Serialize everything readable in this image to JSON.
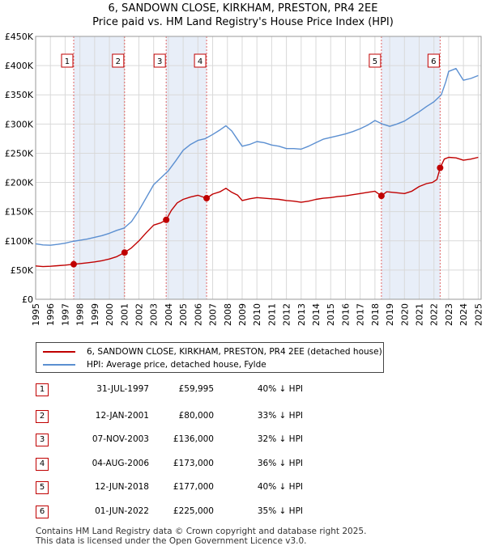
{
  "chart_data": {
    "type": "line",
    "title": "6, SANDOWN CLOSE, KIRKHAM, PRESTON, PR4 2EE",
    "subtitle": "Price paid vs. HM Land Registry's House Price Index (HPI)",
    "xlim": [
      1995,
      2025.2
    ],
    "ylim": [
      0,
      450000
    ],
    "x_ticks": [
      "1995",
      "1996",
      "1997",
      "1998",
      "1999",
      "2000",
      "2001",
      "2002",
      "2003",
      "2004",
      "2005",
      "2006",
      "2007",
      "2008",
      "2009",
      "2010",
      "2011",
      "2012",
      "2013",
      "2014",
      "2015",
      "2016",
      "2017",
      "2018",
      "2019",
      "2020",
      "2021",
      "2022",
      "2023",
      "2024",
      "2025"
    ],
    "y_ticks": [
      {
        "value": 0,
        "label": "£0"
      },
      {
        "value": 50000,
        "label": "£50K"
      },
      {
        "value": 100000,
        "label": "£100K"
      },
      {
        "value": 150000,
        "label": "£150K"
      },
      {
        "value": 200000,
        "label": "£200K"
      },
      {
        "value": 250000,
        "label": "£250K"
      },
      {
        "value": 300000,
        "label": "£300K"
      },
      {
        "value": 350000,
        "label": "£350K"
      },
      {
        "value": 400000,
        "label": "£400K"
      },
      {
        "value": 450000,
        "label": "£450K"
      }
    ],
    "grid": true,
    "series": [
      {
        "name": "6, SANDOWN CLOSE, KIRKHAM, PRESTON, PR4 2EE (detached house)",
        "color": "#c00000",
        "x": [
          1995.0,
          1995.5,
          1996.0,
          1996.5,
          1997.0,
          1997.58,
          1998.0,
          1998.5,
          1999.0,
          1999.5,
          2000.0,
          2000.5,
          2001.03,
          2001.5,
          2002.0,
          2002.5,
          2003.0,
          2003.5,
          2003.85,
          2004.2,
          2004.6,
          2005.0,
          2005.5,
          2006.0,
          2006.59,
          2007.0,
          2007.5,
          2007.9,
          2008.3,
          2008.7,
          2009.0,
          2009.5,
          2010.0,
          2010.5,
          2011.0,
          2011.5,
          2012.0,
          2012.5,
          2013.0,
          2013.5,
          2014.0,
          2014.5,
          2015.0,
          2015.5,
          2016.0,
          2016.5,
          2017.0,
          2017.5,
          2018.0,
          2018.44,
          2018.8,
          2019.2,
          2019.6,
          2020.0,
          2020.5,
          2021.0,
          2021.5,
          2021.9,
          2022.2,
          2022.42,
          2022.7,
          2023.0,
          2023.5,
          2024.0,
          2024.5,
          2025.0
        ],
        "y": [
          57000,
          56000,
          56500,
          57500,
          58500,
          59995,
          61000,
          62500,
          64000,
          66000,
          69000,
          73000,
          80000,
          88000,
          100000,
          114000,
          127000,
          131000,
          136000,
          152000,
          165000,
          171000,
          175000,
          178000,
          173000,
          180000,
          184000,
          190000,
          183000,
          178000,
          169000,
          172000,
          174000,
          173000,
          172000,
          171000,
          169000,
          168000,
          166000,
          168000,
          171000,
          173000,
          174000,
          176000,
          177000,
          179000,
          181000,
          183000,
          185000,
          177000,
          184000,
          183000,
          182000,
          181000,
          185000,
          193000,
          198000,
          200000,
          205000,
          225000,
          240000,
          243000,
          242000,
          238000,
          240000,
          243000
        ]
      },
      {
        "name": "HPI: Average price, detached house, Fylde",
        "color": "#5b8fd1",
        "x": [
          1995.0,
          1995.5,
          1996.0,
          1996.5,
          1997.0,
          1997.5,
          1998.0,
          1998.5,
          1999.0,
          1999.5,
          2000.0,
          2000.5,
          2001.0,
          2001.5,
          2002.0,
          2002.5,
          2003.0,
          2003.5,
          2004.0,
          2004.5,
          2005.0,
          2005.5,
          2006.0,
          2006.5,
          2007.0,
          2007.5,
          2007.9,
          2008.3,
          2008.7,
          2009.0,
          2009.5,
          2010.0,
          2010.5,
          2011.0,
          2011.5,
          2012.0,
          2012.5,
          2013.0,
          2013.5,
          2014.0,
          2014.5,
          2015.0,
          2015.5,
          2016.0,
          2016.5,
          2017.0,
          2017.5,
          2018.0,
          2018.5,
          2019.0,
          2019.5,
          2020.0,
          2020.5,
          2021.0,
          2021.5,
          2022.0,
          2022.5,
          2022.8,
          2023.0,
          2023.5,
          2024.0,
          2024.5,
          2025.0
        ],
        "y": [
          95000,
          93000,
          92500,
          94000,
          96000,
          99000,
          101000,
          103000,
          106000,
          109000,
          113000,
          118000,
          122000,
          133000,
          152000,
          174000,
          196000,
          208000,
          220000,
          237000,
          255000,
          265000,
          272000,
          275000,
          282000,
          290000,
          297000,
          288000,
          273000,
          262000,
          265000,
          270000,
          268000,
          264000,
          262000,
          258000,
          258000,
          257000,
          262000,
          268000,
          274000,
          277000,
          280000,
          283000,
          287000,
          292000,
          298000,
          306000,
          300000,
          296000,
          300000,
          305000,
          313000,
          321000,
          330000,
          338000,
          350000,
          372000,
          390000,
          395000,
          375000,
          378000,
          383000
        ]
      }
    ],
    "sales": [
      {
        "n": "1",
        "x": 1997.58,
        "y": 59995
      },
      {
        "n": "2",
        "x": 2001.03,
        "y": 80000
      },
      {
        "n": "3",
        "x": 2003.85,
        "y": 136000
      },
      {
        "n": "4",
        "x": 2006.59,
        "y": 173000
      },
      {
        "n": "5",
        "x": 2018.44,
        "y": 177000
      },
      {
        "n": "6",
        "x": 2022.42,
        "y": 225000
      }
    ],
    "shaded_periods": [
      [
        1997.58,
        2001.03
      ],
      [
        2003.85,
        2006.59
      ],
      [
        2018.44,
        2022.42
      ]
    ]
  },
  "legend": {
    "property": "6, SANDOWN CLOSE, KIRKHAM, PRESTON, PR4 2EE (detached house)",
    "hpi": "HPI: Average price, detached house, Fylde"
  },
  "transactions": [
    {
      "n": "1",
      "date": "31-JUL-1997",
      "price": "£59,995",
      "hpi": "40% ↓ HPI"
    },
    {
      "n": "2",
      "date": "12-JAN-2001",
      "price": "£80,000",
      "hpi": "33% ↓ HPI"
    },
    {
      "n": "3",
      "date": "07-NOV-2003",
      "price": "£136,000",
      "hpi": "32% ↓ HPI"
    },
    {
      "n": "4",
      "date": "04-AUG-2006",
      "price": "£173,000",
      "hpi": "36% ↓ HPI"
    },
    {
      "n": "5",
      "date": "12-JUN-2018",
      "price": "£177,000",
      "hpi": "40% ↓ HPI"
    },
    {
      "n": "6",
      "date": "01-JUN-2022",
      "price": "£225,000",
      "hpi": "35% ↓ HPI"
    }
  ],
  "footer": {
    "line1": "Contains HM Land Registry data © Crown copyright and database right 2025.",
    "line2": "This data is licensed under the Open Government Licence v3.0."
  },
  "colors": {
    "property": "#c00000",
    "hpi": "#5b8fd1",
    "shade": "#e8eef8"
  }
}
